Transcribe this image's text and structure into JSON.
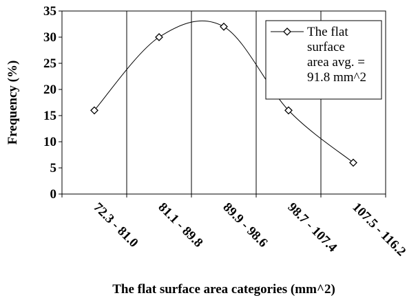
{
  "chart_data": {
    "type": "line",
    "categories": [
      "72.3 - 81.0",
      "81.1 - 89.8",
      "89.9 - 98.6",
      "98.7 - 107.4",
      "107.5 - 116.2"
    ],
    "series": [
      {
        "name": "The flat surface area avg. = 91.8 mm^2",
        "legend_lines": [
          "The flat",
          "surface",
          "area avg. =",
          "91.8 mm^2"
        ],
        "values": [
          16,
          30,
          32,
          16,
          6
        ],
        "marker": "diamond",
        "color": "#000000"
      }
    ],
    "smoothed": true,
    "xlabel": "The flat surface area categories (mm^2)",
    "ylabel": "Frequency (%)",
    "ylim": [
      0,
      35
    ],
    "yticks": [
      0,
      5,
      10,
      15,
      20,
      25,
      30,
      35
    ],
    "grid": "vertical",
    "legend": "top-right"
  }
}
